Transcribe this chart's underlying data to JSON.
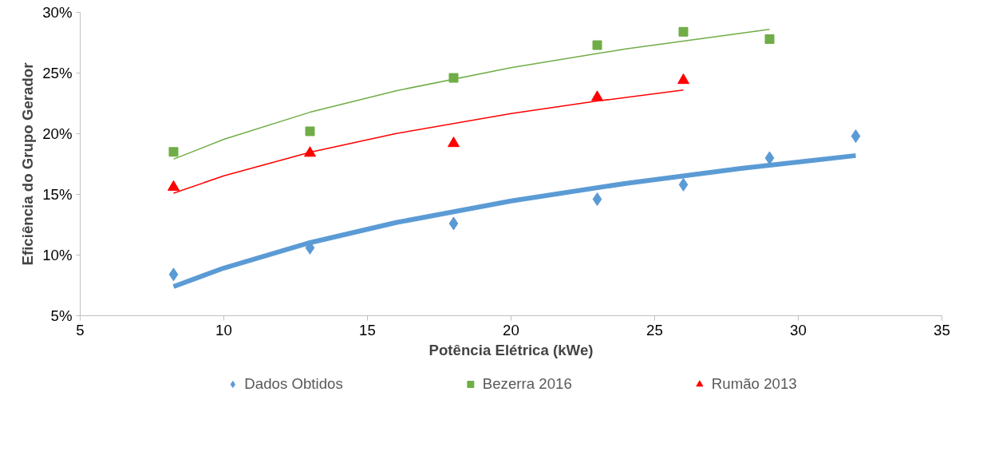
{
  "chart_data": {
    "type": "scatter",
    "xlabel": "Potência Elétrica (kWe)",
    "ylabel": "Eficiência do Grupo Gerador",
    "xlim": [
      5,
      35
    ],
    "xticks": [
      5,
      10,
      15,
      20,
      25,
      30,
      35
    ],
    "ylim": [
      5,
      30
    ],
    "yticks": [
      {
        "value": 5,
        "label": "5%"
      },
      {
        "value": 10,
        "label": "10%"
      },
      {
        "value": 15,
        "label": "15%"
      },
      {
        "value": 20,
        "label": "20%"
      },
      {
        "value": 25,
        "label": "25%"
      },
      {
        "value": 30,
        "label": "30%"
      }
    ],
    "grid": false,
    "legend": "bottom",
    "series": [
      {
        "name": "Dados Obtidos",
        "color": "#5b9bd5",
        "marker": "diamond",
        "x": [
          8.25,
          13,
          18,
          23,
          26,
          29,
          32
        ],
        "values": [
          8.4,
          10.6,
          12.6,
          14.6,
          15.8,
          18.0,
          19.8
        ]
      },
      {
        "name": "Bezerra 2016",
        "color": "#70ad47",
        "marker": "square",
        "x": [
          8.25,
          13,
          18,
          23,
          26,
          29
        ],
        "values": [
          18.5,
          20.2,
          24.6,
          27.3,
          28.4,
          27.8
        ]
      },
      {
        "name": "Rumão 2013",
        "color": "#ff0000",
        "marker": "triangle",
        "x": [
          8.25,
          13,
          18,
          23,
          26
        ],
        "values": [
          15.6,
          18.4,
          19.2,
          23.0,
          24.4
        ]
      },
      {
        "type": "line",
        "color": "#5b9bd5",
        "x": [
          8.25,
          10,
          13,
          16,
          20,
          24,
          28,
          32
        ],
        "values": [
          7.4,
          8.93,
          11.02,
          12.68,
          14.46,
          15.91,
          17.14,
          18.2
        ]
      },
      {
        "type": "line",
        "color": "#70ad47",
        "x": [
          8.25,
          10,
          13,
          16,
          20,
          24,
          29
        ],
        "values": [
          17.9,
          19.54,
          21.77,
          23.54,
          25.44,
          26.99,
          28.6
        ]
      },
      {
        "type": "line",
        "color": "#ff0000",
        "x": [
          8.25,
          10,
          13,
          16,
          20,
          23,
          26
        ],
        "values": [
          15.1,
          16.53,
          18.47,
          20.01,
          21.66,
          22.69,
          23.6
        ]
      }
    ]
  }
}
